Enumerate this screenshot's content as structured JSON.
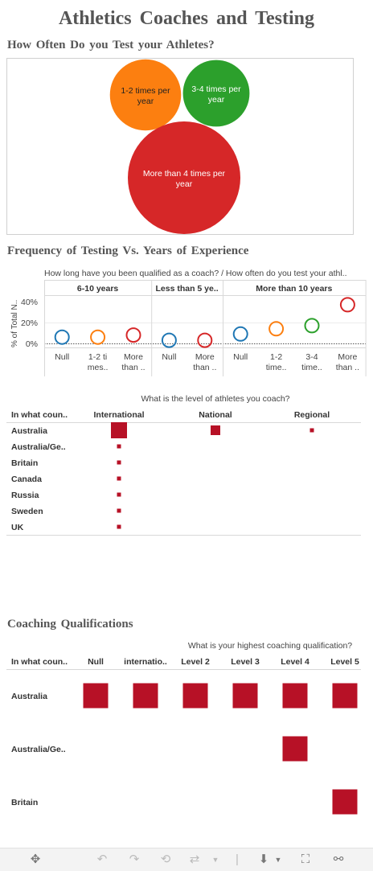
{
  "dashboard": {
    "title": "Athletics Coaches and Testing"
  },
  "charts": [
    {
      "type": "bubble",
      "title": "How Often Do you Test your Athletes?",
      "bubbles": [
        {
          "label": "1-2 times per year",
          "value": 16,
          "color": "#fc7f10"
        },
        {
          "label": "3-4 times per year",
          "value": 14,
          "color": "#2ca02c"
        },
        {
          "label": "More than 4 times per year",
          "value": 40,
          "color": "#d62728"
        }
      ]
    },
    {
      "type": "scatter",
      "title": "Frequency of Testing Vs. Years of Experience",
      "header": "How long have you been qualified as a coach?  /  How often do you test your athl..",
      "ylabel": "% of Total N..",
      "yticks": [
        "40%",
        "20%",
        "0%"
      ],
      "ylim": [
        -5,
        45
      ],
      "panels": [
        {
          "label": "6-10 years",
          "columns": [
            {
              "label": [
                "Null"
              ],
              "value": 6,
              "color": "#1f77b4"
            },
            {
              "label": [
                "1-2 ti",
                "mes.."
              ],
              "value": 6,
              "color": "#fc7f10"
            },
            {
              "label": [
                "More",
                "than .."
              ],
              "value": 8,
              "color": "#d62728"
            }
          ]
        },
        {
          "label": "Less than 5 ye..",
          "columns": [
            {
              "label": [
                "Null"
              ],
              "value": 3,
              "color": "#1f77b4"
            },
            {
              "label": [
                "More",
                "than .."
              ],
              "value": 3,
              "color": "#d62728"
            }
          ]
        },
        {
          "label": "More than 10 years",
          "columns": [
            {
              "label": [
                "Null"
              ],
              "value": 9,
              "color": "#1f77b4"
            },
            {
              "label": [
                "1-2",
                "time.."
              ],
              "value": 14,
              "color": "#fc7f10"
            },
            {
              "label": [
                "3-4",
                "time.."
              ],
              "value": 17,
              "color": "#2ca02c"
            },
            {
              "label": [
                "More",
                "than .."
              ],
              "value": 37,
              "color": "#d62728"
            }
          ]
        }
      ]
    },
    {
      "type": "square-matrix",
      "header": "What is the level of athletes you coach?",
      "row_header": "In what coun..",
      "columns": [
        "International",
        "National",
        "Regional"
      ],
      "rows": [
        "Australia",
        "Australia/Ge..",
        "Britain",
        "Canada",
        "Russia",
        "Sweden",
        "UK"
      ],
      "values": [
        [
          20,
          12,
          5
        ],
        [
          5,
          null,
          null
        ],
        [
          5,
          null,
          null
        ],
        [
          5,
          null,
          null
        ],
        [
          5,
          null,
          null
        ],
        [
          5,
          null,
          null
        ],
        [
          5,
          null,
          null
        ]
      ],
      "color": "#b71126"
    },
    {
      "type": "square-matrix",
      "title": "Coaching Qualifications",
      "header": "What is your highest coaching qualification?",
      "row_header": "In what coun..",
      "columns": [
        "Null",
        "internatio..",
        "Level 2",
        "Level 3",
        "Level 4",
        "Level 5"
      ],
      "rows": [
        "Australia",
        "Australia/Ge..",
        "Britain"
      ],
      "values": [
        [
          31,
          31,
          31,
          31,
          31,
          31
        ],
        [
          null,
          null,
          null,
          null,
          31,
          null
        ],
        [
          null,
          null,
          null,
          null,
          null,
          31
        ]
      ],
      "color": "#b71126"
    }
  ],
  "toolbar": {
    "icons": [
      "move-icon",
      "undo-icon",
      "redo-icon",
      "revert-icon",
      "refresh-icon",
      "dropdown-icon",
      "download-icon",
      "dropdown-icon",
      "fullscreen-icon",
      "share-icon"
    ]
  }
}
